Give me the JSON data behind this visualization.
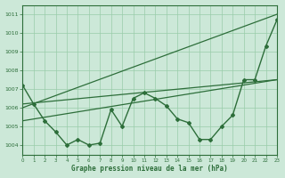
{
  "title": "Graphe pression niveau de la mer (hPa)",
  "bg_color": "#cce8d8",
  "grid_color": "#99ccaa",
  "line_color": "#2d6e3a",
  "xlim": [
    0,
    23
  ],
  "ylim": [
    1003.5,
    1011.5
  ],
  "yticks": [
    1004,
    1005,
    1006,
    1007,
    1008,
    1009,
    1010,
    1011
  ],
  "xticks": [
    0,
    1,
    2,
    3,
    4,
    5,
    6,
    7,
    8,
    9,
    10,
    11,
    12,
    13,
    14,
    15,
    16,
    17,
    18,
    19,
    20,
    21,
    22,
    23
  ],
  "series_main": {
    "x": [
      0,
      1,
      2,
      3,
      4,
      5,
      6,
      7,
      8,
      9,
      10,
      11,
      12,
      13,
      14,
      15,
      16,
      17,
      18,
      19,
      20,
      21,
      22,
      23
    ],
    "y": [
      1007.2,
      1006.2,
      1005.3,
      1004.7,
      1004.0,
      1004.3,
      1004.0,
      1004.1,
      1005.9,
      1005.0,
      1006.5,
      1006.8,
      1006.5,
      1006.1,
      1005.4,
      1005.2,
      1004.3,
      1004.3,
      1005.0,
      1005.6,
      1007.5,
      1007.5,
      1009.3,
      1010.7
    ],
    "marker": "D",
    "markersize": 2.0,
    "linewidth": 1.0
  },
  "series_steep": {
    "x": [
      0,
      23
    ],
    "y": [
      1006.0,
      1011.0
    ],
    "linewidth": 0.9
  },
  "series_flat1": {
    "x": [
      0,
      23
    ],
    "y": [
      1005.3,
      1007.5
    ],
    "linewidth": 0.9
  },
  "series_flat2": {
    "x": [
      0,
      23
    ],
    "y": [
      1006.2,
      1007.5
    ],
    "linewidth": 0.9
  }
}
